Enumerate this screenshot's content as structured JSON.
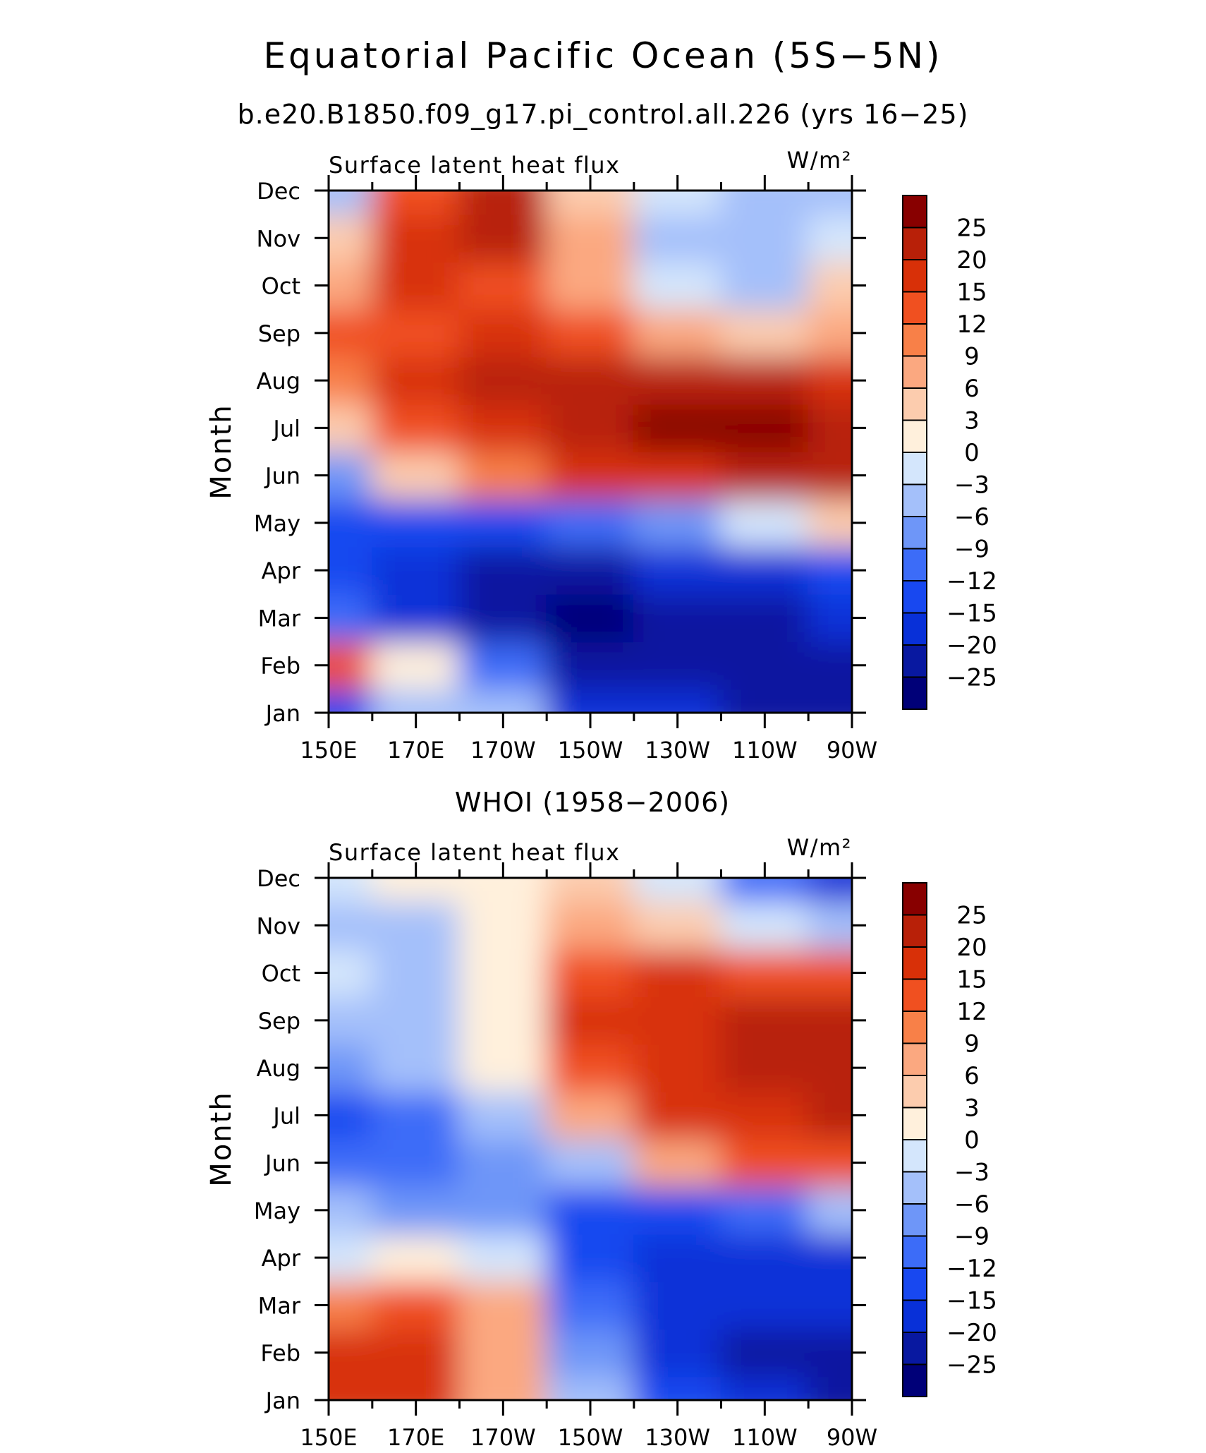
{
  "figure": {
    "title": "Equatorial Pacific Ocean (5S−5N)",
    "subtitle": "b.e20.B1850.f09_g17.pi_control.all.226 (yrs 16−25)",
    "second_title": "WHOI (1958−2006)"
  },
  "colorbar": {
    "levels": [
      "25",
      "20",
      "15",
      "12",
      "9",
      "6",
      "3",
      "0",
      "−3",
      "−6",
      "−9",
      "−12",
      "−15",
      "−20",
      "−25"
    ],
    "level_values": [
      -25,
      -20,
      -15,
      -12,
      -9,
      -6,
      -3,
      0,
      3,
      6,
      9,
      12,
      15,
      20,
      25
    ],
    "colors": [
      "#000078",
      "#0818A0",
      "#0830D8",
      "#1848F0",
      "#3C6CF8",
      "#6E96F8",
      "#A4C0FA",
      "#D4E6FC",
      "#FFF0DC",
      "#FCCCAE",
      "#FBA880",
      "#F88048",
      "#F05020",
      "#D83008",
      "#B82008",
      "#880000"
    ]
  },
  "chart_data": [
    {
      "type": "heatmap",
      "panel_label": "Surface latent heat flux",
      "units": "W/m²",
      "ylabel": "Month",
      "x": [
        "150E",
        "170E",
        "170W",
        "150W",
        "130W",
        "110W",
        "90W"
      ],
      "x_lon_deg": [
        150,
        170,
        190,
        210,
        230,
        250,
        270
      ],
      "y": [
        "Jan",
        "Feb",
        "Mar",
        "Apr",
        "May",
        "Jun",
        "Jul",
        "Aug",
        "Sep",
        "Oct",
        "Nov",
        "Dec"
      ],
      "z": [
        [
          -14,
          -6,
          -6,
          -16,
          -20,
          -22,
          -22
        ],
        [
          14,
          0,
          -12,
          -21,
          -23,
          -24,
          -23
        ],
        [
          -11,
          -18,
          -24,
          -26,
          -22,
          -21,
          -18
        ],
        [
          -15,
          -20,
          -24,
          -25,
          -20,
          -18,
          -14
        ],
        [
          -13,
          -14,
          -13,
          -10,
          -7,
          -3,
          4
        ],
        [
          -7,
          3,
          9,
          15,
          19,
          21,
          23
        ],
        [
          3,
          13,
          18,
          21,
          26,
          26,
          21
        ],
        [
          9,
          15,
          20,
          22,
          21,
          20,
          18
        ],
        [
          14,
          13,
          15,
          12,
          6,
          5,
          6
        ],
        [
          6,
          15,
          14,
          6,
          -3,
          -6,
          4
        ],
        [
          3,
          16,
          22,
          8,
          -4,
          -6,
          -1
        ],
        [
          -4,
          12,
          21,
          3,
          -1,
          -6,
          -6
        ]
      ]
    },
    {
      "type": "heatmap",
      "panel_label": "Surface latent heat flux",
      "units": "W/m²",
      "ylabel": "Month",
      "x": [
        "150E",
        "170E",
        "170W",
        "150W",
        "130W",
        "110W",
        "90W"
      ],
      "x_lon_deg": [
        150,
        170,
        190,
        210,
        230,
        250,
        270
      ],
      "y": [
        "Jan",
        "Feb",
        "Mar",
        "Apr",
        "May",
        "Jun",
        "Jul",
        "Aug",
        "Sep",
        "Oct",
        "Nov",
        "Dec"
      ],
      "z": [
        [
          16,
          15,
          6,
          -6,
          -15,
          -20,
          -25
        ],
        [
          16,
          16,
          6,
          -8,
          -18,
          -22,
          -24
        ],
        [
          10,
          12,
          6,
          -12,
          -18,
          -18,
          -16
        ],
        [
          -1,
          2,
          -3,
          -15,
          -18,
          -18,
          -16
        ],
        [
          -6,
          -9,
          -9,
          -15,
          -15,
          -12,
          -4
        ],
        [
          -12,
          -12,
          -9,
          -6,
          6,
          12,
          14
        ],
        [
          -13,
          -11,
          -4,
          6,
          16,
          18,
          20
        ],
        [
          -9,
          -6,
          0,
          14,
          18,
          20,
          20
        ],
        [
          -4,
          -4,
          1,
          16,
          18,
          20,
          22
        ],
        [
          -3,
          -5,
          1,
          14,
          15,
          14,
          12
        ],
        [
          -4,
          -5,
          2,
          8,
          4,
          -2,
          -6
        ],
        [
          -1,
          1,
          2,
          3,
          -2,
          -10,
          -18
        ]
      ]
    }
  ]
}
